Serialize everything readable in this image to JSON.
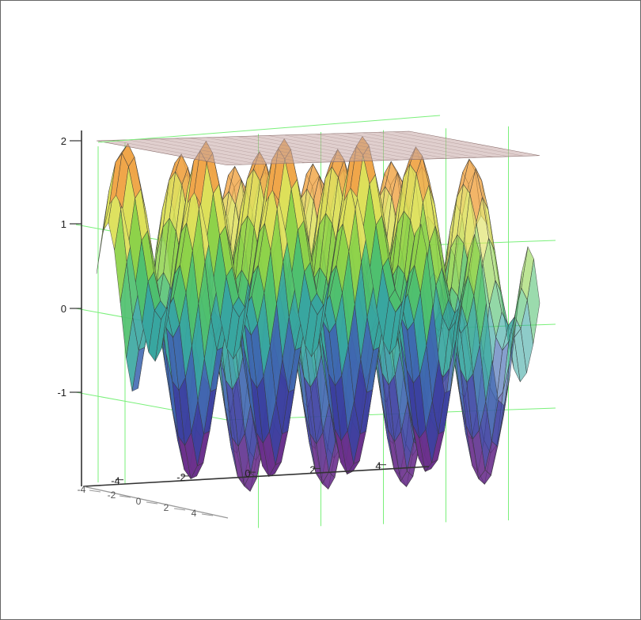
{
  "chart_data": {
    "type": "surface3d",
    "title": "",
    "xlabel": "",
    "ylabel": "",
    "zlabel": "",
    "x_ticks": [
      "-4",
      "-2",
      "0",
      "2",
      "4"
    ],
    "y_ticks": [
      "-4",
      "-2",
      "0",
      "2",
      "4"
    ],
    "z_ticks": [
      "-1",
      "0",
      "1",
      "2"
    ],
    "xlim": [
      -5,
      5
    ],
    "ylim": [
      -5,
      5
    ],
    "zlim": [
      -2,
      2
    ],
    "grid": true,
    "surface_function": "z = sin(2.5x) + cos(1.5y)",
    "colormap": [
      "#6a2f8c",
      "#3b3fa0",
      "#3f67b0",
      "#38a6a0",
      "#4fc06f",
      "#8ed24a",
      "#dde05a",
      "#f0a64a"
    ],
    "overlay_plane": {
      "z": 2,
      "color": "#c6a7a5"
    },
    "grid_color": "#7af07a"
  }
}
